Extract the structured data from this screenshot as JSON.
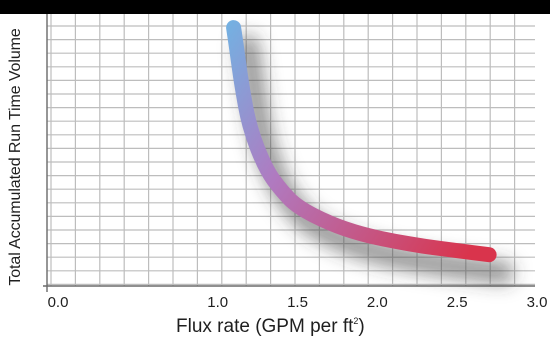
{
  "chart_data": {
    "type": "line",
    "title": "",
    "xlabel": "Flux rate (GPM per ft",
    "xlabel_superscript": "2",
    "xlabel_suffix": ")",
    "ylabel": "Total Accumulated Run Time Volume",
    "xlim": [
      0.0,
      3.0
    ],
    "x_ticks": [
      "0.0",
      "1.0",
      "1.5",
      "2.0",
      "2.5",
      "3.0"
    ],
    "x_tick_values": [
      0.0,
      1.0,
      1.5,
      2.0,
      2.5,
      3.0
    ],
    "y_ticks": [],
    "grid": true,
    "legend": "none",
    "series": [
      {
        "x": [
          1.1,
          1.12,
          1.15,
          1.2,
          1.3,
          1.4,
          1.5,
          1.7,
          1.9,
          2.1,
          2.3,
          2.5,
          2.7
        ],
        "y": [
          0.95,
          0.87,
          0.74,
          0.58,
          0.43,
          0.35,
          0.29,
          0.23,
          0.19,
          0.165,
          0.145,
          0.13,
          0.115
        ],
        "color_start": "#5ec4ee",
        "color_mid": "#b07ac0",
        "color_end": "#d9344c"
      }
    ],
    "colors": {
      "top_bar": "#000000",
      "grid_line": "#bdbdbd",
      "border_frame": "#6a6a6a",
      "shadow": "#3a3a3a"
    }
  }
}
